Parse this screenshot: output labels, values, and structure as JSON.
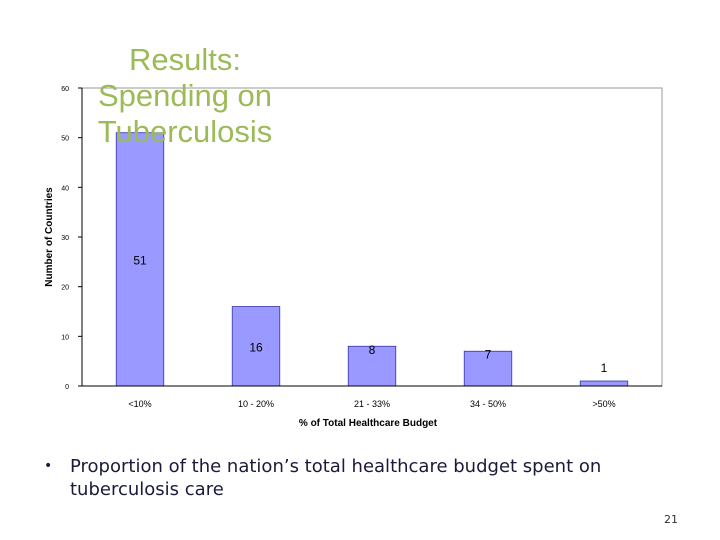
{
  "slide": {
    "title": "Results:\nSpending on\nTuberculosis",
    "bullet": "Proportion of the nation’s total healthcare budget spent on tuberculosis care",
    "page_number": "21"
  },
  "chart_data": {
    "type": "bar",
    "categories": [
      "<10%",
      "10 - 20%",
      "21 - 33%",
      "34 - 50%",
      ">50%"
    ],
    "values": [
      51,
      16,
      8,
      7,
      1
    ],
    "data_labels": [
      "51",
      "16",
      "8",
      "7",
      "1"
    ],
    "xlabel": "% of Total Healthcare Budget",
    "ylabel": "Number of Countries",
    "ylim": [
      0,
      60
    ],
    "yticks": [
      0,
      10,
      20,
      30,
      40,
      50,
      60
    ],
    "ytick_labels": [
      "0",
      "10",
      "20",
      "30",
      "40",
      "50",
      "60"
    ],
    "bar_color": "#9999ff",
    "bar_edge_color": "#3333aa",
    "grid": false,
    "legend": "none"
  }
}
